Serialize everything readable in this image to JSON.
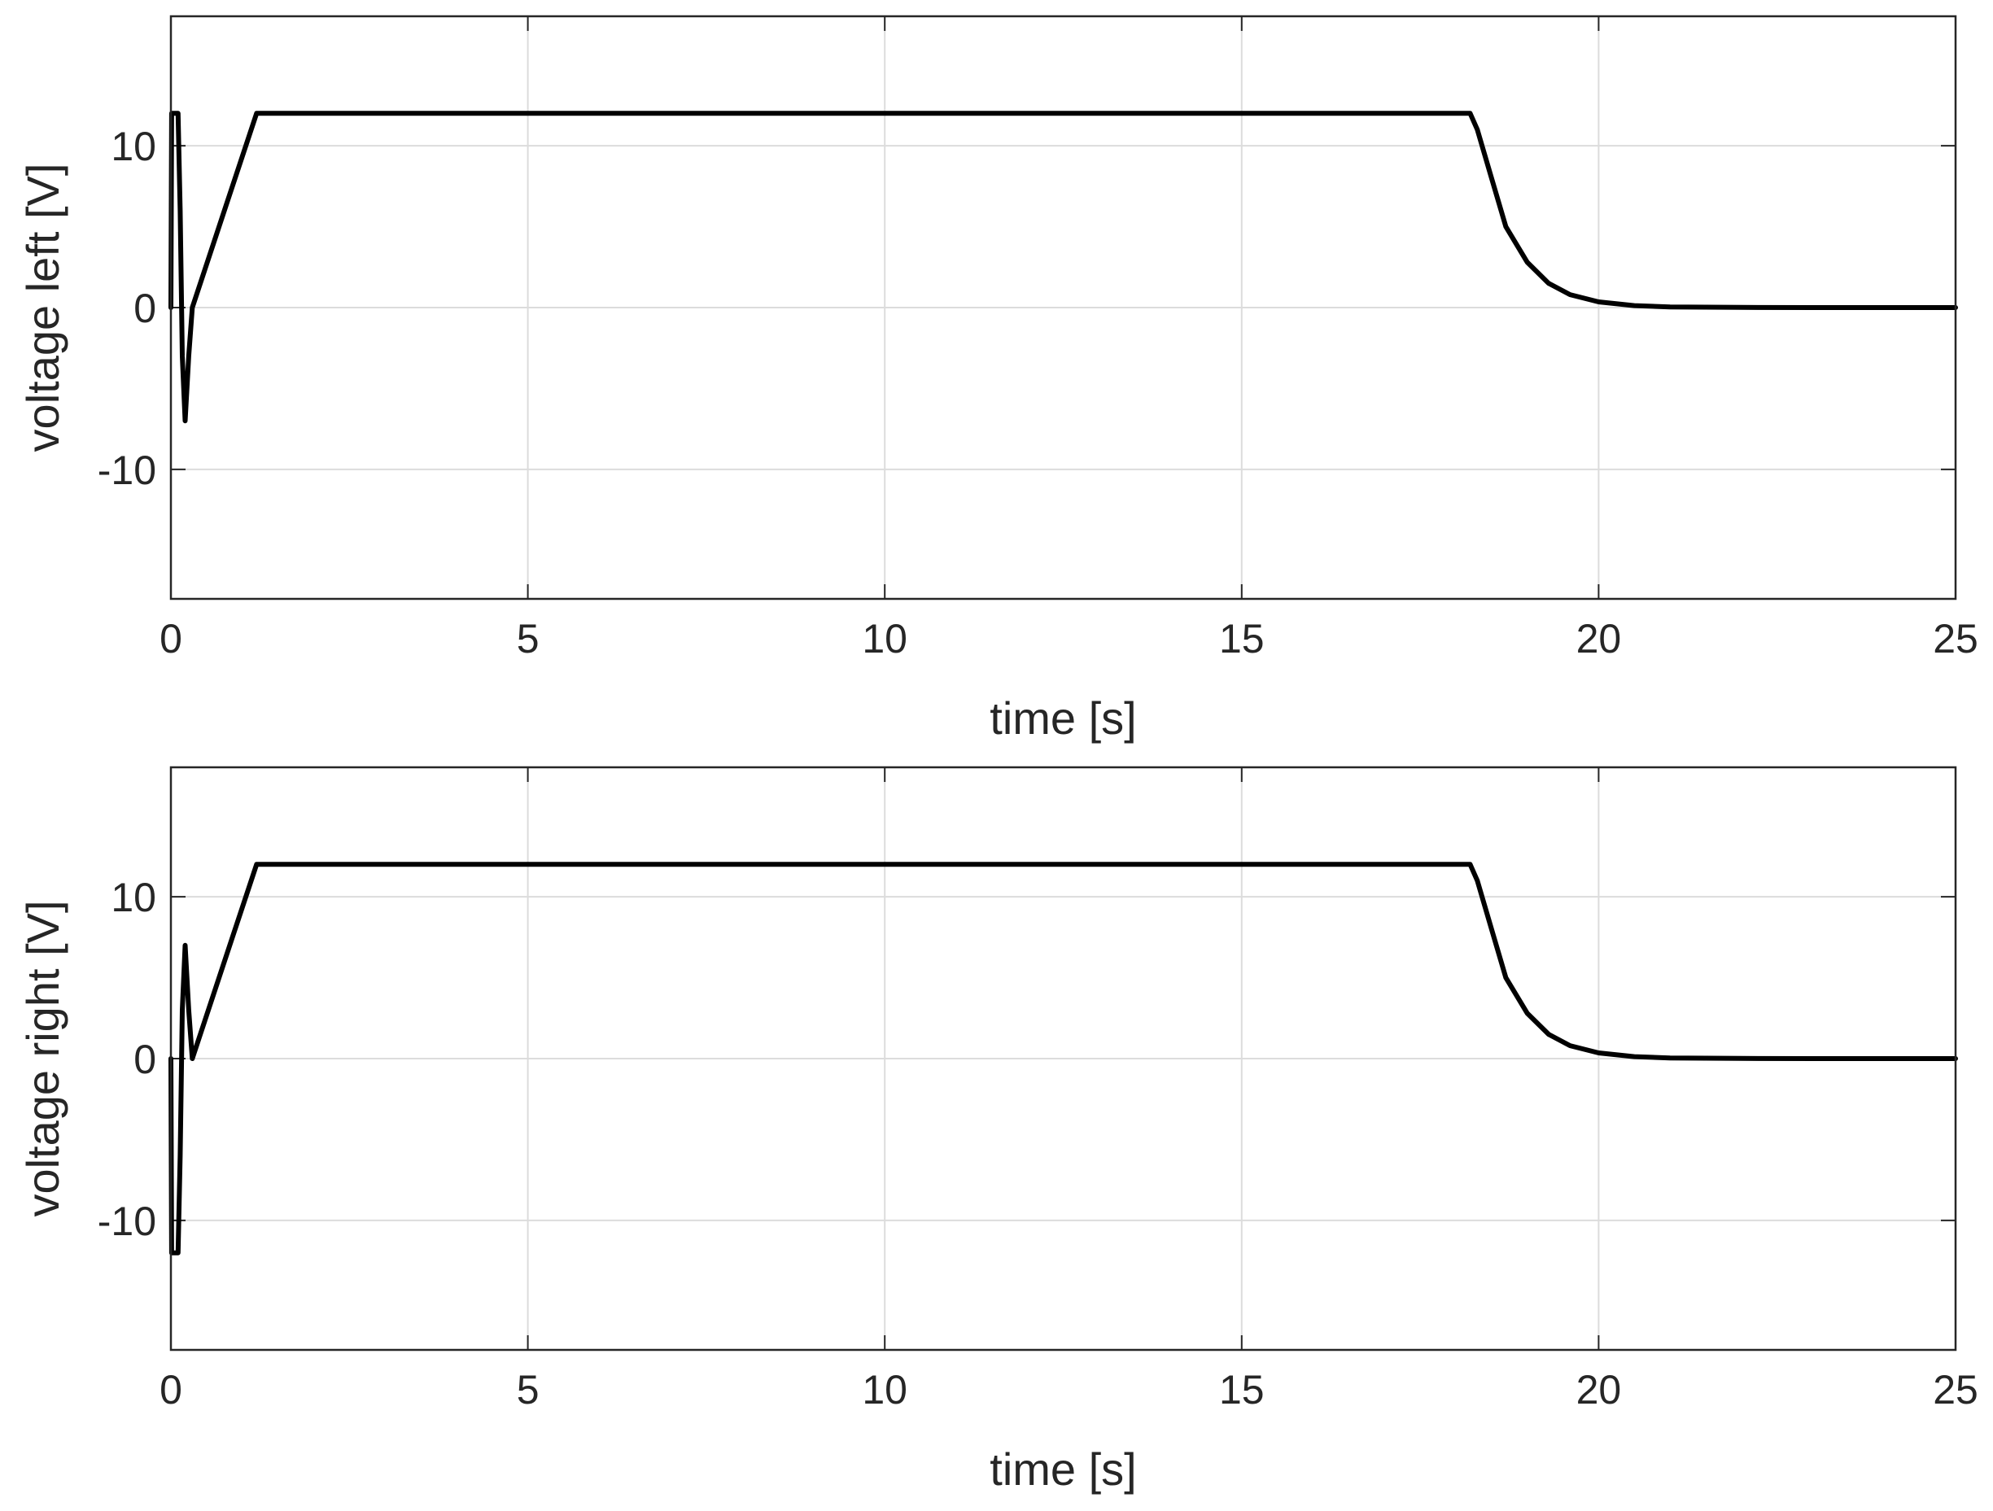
{
  "chart_data": [
    {
      "type": "line",
      "xlabel": "time [s]",
      "ylabel": "voltage left [V]",
      "xlim": [
        0,
        25
      ],
      "ylim": [
        -18,
        18
      ],
      "xticks": [
        0,
        5,
        10,
        15,
        20,
        25
      ],
      "yticks": [
        -10,
        0,
        10
      ],
      "xtick_labels": [
        "0",
        "5",
        "10",
        "15",
        "20",
        "25"
      ],
      "ytick_labels": [
        "-10",
        "0",
        "10"
      ],
      "grid": true,
      "series": [
        {
          "x": [
            0,
            0.01,
            0.02,
            0.05,
            0.1,
            0.13,
            0.16,
            0.2,
            0.25,
            0.3,
            0.6,
            0.9,
            1.2,
            5,
            10,
            15,
            18.2,
            18.3,
            18.5,
            18.7,
            19.0,
            19.3,
            19.6,
            20.0,
            20.5,
            21.0,
            22.0,
            23.0,
            25.0
          ],
          "y": [
            0,
            12,
            12,
            12,
            12,
            6,
            -3,
            -7,
            -3,
            0,
            4,
            8,
            12,
            12,
            12,
            12,
            12,
            11,
            8,
            5,
            2.8,
            1.5,
            0.8,
            0.35,
            0.12,
            0.04,
            0.01,
            0,
            0
          ]
        }
      ]
    },
    {
      "type": "line",
      "xlabel": "time [s]",
      "ylabel": "voltage right [V]",
      "xlim": [
        0,
        25
      ],
      "ylim": [
        -18,
        18
      ],
      "xticks": [
        0,
        5,
        10,
        15,
        20,
        25
      ],
      "yticks": [
        -10,
        0,
        10
      ],
      "xtick_labels": [
        "0",
        "5",
        "10",
        "15",
        "20",
        "25"
      ],
      "ytick_labels": [
        "-10",
        "0",
        "10"
      ],
      "grid": true,
      "series": [
        {
          "x": [
            0,
            0.01,
            0.02,
            0.05,
            0.1,
            0.13,
            0.16,
            0.2,
            0.25,
            0.3,
            0.6,
            0.9,
            1.2,
            5,
            10,
            15,
            18.2,
            18.3,
            18.5,
            18.7,
            19.0,
            19.3,
            19.6,
            20.0,
            20.5,
            21.0,
            22.0,
            23.0,
            25.0
          ],
          "y": [
            0,
            -12,
            -12,
            -12,
            -12,
            -6,
            3,
            7,
            3,
            0,
            4,
            8,
            12,
            12,
            12,
            12,
            12,
            11,
            8,
            5,
            2.8,
            1.5,
            0.8,
            0.35,
            0.12,
            0.04,
            0.01,
            0,
            0
          ]
        }
      ]
    }
  ]
}
